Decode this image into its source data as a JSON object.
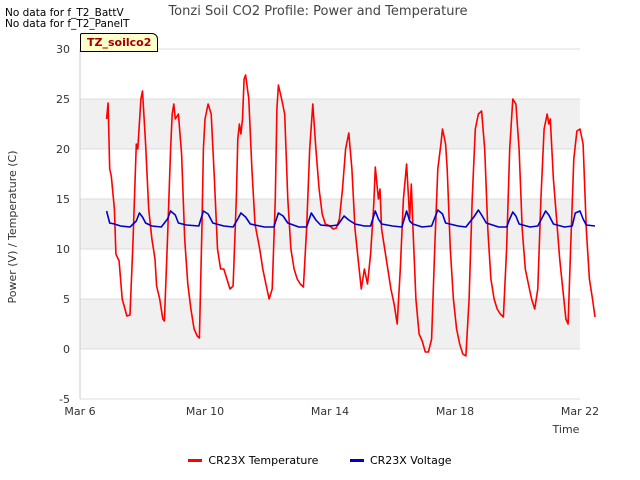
{
  "chart_data": {
    "type": "line",
    "title": "Tonzi Soil CO2 Profile: Power and Temperature",
    "xlabel": "Time",
    "ylabel": "Power (V) / Temperature (C)",
    "ylim": [
      -5,
      30
    ],
    "xlim_days": [
      6,
      22
    ],
    "x_ticks": [
      {
        "value": 6,
        "label": "Mar 6"
      },
      {
        "value": 10,
        "label": "Mar 10"
      },
      {
        "value": 14,
        "label": "Mar 14"
      },
      {
        "value": 18,
        "label": "Mar 18"
      },
      {
        "value": 22,
        "label": "Mar 22"
      }
    ],
    "y_ticks": [
      -5,
      0,
      5,
      10,
      15,
      20,
      25,
      30
    ],
    "grid": "horizontal bands",
    "legend_position": "bottom",
    "series": [
      {
        "name": "CR23X Temperature",
        "color": "#ff0000",
        "points": [
          [
            6.85,
            23.0
          ],
          [
            6.9,
            24.6
          ],
          [
            6.95,
            18.0
          ],
          [
            7.0,
            17.3
          ],
          [
            7.1,
            14.0
          ],
          [
            7.15,
            9.5
          ],
          [
            7.25,
            8.8
          ],
          [
            7.35,
            5.0
          ],
          [
            7.5,
            3.3
          ],
          [
            7.6,
            3.4
          ],
          [
            7.7,
            11.0
          ],
          [
            7.8,
            20.5
          ],
          [
            7.85,
            20.0
          ],
          [
            7.95,
            25.0
          ],
          [
            8.0,
            25.8
          ],
          [
            8.1,
            20.5
          ],
          [
            8.2,
            14.0
          ],
          [
            8.3,
            11.0
          ],
          [
            8.4,
            9.0
          ],
          [
            8.45,
            6.3
          ],
          [
            8.55,
            5.0
          ],
          [
            8.65,
            3.0
          ],
          [
            8.7,
            2.8
          ],
          [
            8.8,
            11.0
          ],
          [
            8.9,
            20.0
          ],
          [
            8.95,
            23.5
          ],
          [
            9.0,
            24.5
          ],
          [
            9.05,
            23.0
          ],
          [
            9.15,
            23.5
          ],
          [
            9.25,
            19.5
          ],
          [
            9.35,
            11.0
          ],
          [
            9.45,
            6.5
          ],
          [
            9.55,
            4.0
          ],
          [
            9.65,
            2.0
          ],
          [
            9.75,
            1.3
          ],
          [
            9.82,
            1.1
          ],
          [
            9.9,
            12.0
          ],
          [
            9.95,
            20.0
          ],
          [
            10.0,
            23.0
          ],
          [
            10.1,
            24.5
          ],
          [
            10.2,
            23.5
          ],
          [
            10.3,
            17.0
          ],
          [
            10.4,
            10.0
          ],
          [
            10.5,
            8.0
          ],
          [
            10.6,
            8.0
          ],
          [
            10.7,
            7.0
          ],
          [
            10.8,
            6.0
          ],
          [
            10.9,
            6.3
          ],
          [
            11.0,
            15.0
          ],
          [
            11.05,
            21.0
          ],
          [
            11.1,
            22.5
          ],
          [
            11.15,
            21.5
          ],
          [
            11.2,
            23.0
          ],
          [
            11.25,
            27.0
          ],
          [
            11.3,
            27.4
          ],
          [
            11.4,
            25.0
          ],
          [
            11.5,
            18.0
          ],
          [
            11.6,
            12.5
          ],
          [
            11.75,
            10.0
          ],
          [
            11.85,
            8.0
          ],
          [
            11.95,
            6.5
          ],
          [
            12.05,
            5.0
          ],
          [
            12.15,
            6.0
          ],
          [
            12.25,
            15.0
          ],
          [
            12.3,
            24.0
          ],
          [
            12.35,
            26.4
          ],
          [
            12.45,
            25.0
          ],
          [
            12.55,
            23.5
          ],
          [
            12.65,
            15.0
          ],
          [
            12.75,
            10.0
          ],
          [
            12.85,
            8.0
          ],
          [
            12.95,
            7.0
          ],
          [
            13.05,
            6.5
          ],
          [
            13.15,
            6.2
          ],
          [
            13.25,
            12.0
          ],
          [
            13.35,
            20.0
          ],
          [
            13.45,
            24.5
          ],
          [
            13.55,
            20.0
          ],
          [
            13.65,
            16.0
          ],
          [
            13.75,
            13.5
          ],
          [
            13.85,
            12.5
          ],
          [
            14.0,
            12.3
          ],
          [
            14.1,
            12.0
          ],
          [
            14.2,
            12.1
          ],
          [
            14.3,
            13.0
          ],
          [
            14.4,
            16.0
          ],
          [
            14.5,
            20.0
          ],
          [
            14.6,
            21.6
          ],
          [
            14.7,
            18.0
          ],
          [
            14.8,
            12.0
          ],
          [
            14.9,
            9.0
          ],
          [
            15.0,
            6.0
          ],
          [
            15.1,
            8.0
          ],
          [
            15.2,
            6.5
          ],
          [
            15.3,
            9.5
          ],
          [
            15.4,
            14.5
          ],
          [
            15.45,
            18.2
          ],
          [
            15.55,
            15.0
          ],
          [
            15.6,
            16.0
          ],
          [
            15.65,
            12.0
          ],
          [
            15.75,
            10.0
          ],
          [
            15.85,
            8.0
          ],
          [
            15.95,
            6.0
          ],
          [
            16.05,
            4.5
          ],
          [
            16.15,
            2.5
          ],
          [
            16.25,
            8.0
          ],
          [
            16.35,
            15.0
          ],
          [
            16.45,
            18.5
          ],
          [
            16.55,
            13.0
          ],
          [
            16.6,
            16.5
          ],
          [
            16.65,
            12.5
          ],
          [
            16.75,
            5.0
          ],
          [
            16.85,
            1.5
          ],
          [
            16.95,
            0.8
          ],
          [
            17.05,
            -0.3
          ],
          [
            17.15,
            -0.3
          ],
          [
            17.25,
            1.0
          ],
          [
            17.35,
            10.0
          ],
          [
            17.45,
            18.0
          ],
          [
            17.55,
            20.5
          ],
          [
            17.6,
            22.0
          ],
          [
            17.7,
            20.5
          ],
          [
            17.75,
            18.0
          ],
          [
            17.85,
            10.0
          ],
          [
            17.95,
            5.0
          ],
          [
            18.05,
            2.0
          ],
          [
            18.15,
            0.5
          ],
          [
            18.25,
            -0.5
          ],
          [
            18.35,
            -0.7
          ],
          [
            18.45,
            5.0
          ],
          [
            18.55,
            15.0
          ],
          [
            18.65,
            22.0
          ],
          [
            18.75,
            23.5
          ],
          [
            18.85,
            23.8
          ],
          [
            18.95,
            20.0
          ],
          [
            19.05,
            12.0
          ],
          [
            19.15,
            7.0
          ],
          [
            19.25,
            5.0
          ],
          [
            19.35,
            4.0
          ],
          [
            19.45,
            3.5
          ],
          [
            19.55,
            3.2
          ],
          [
            19.65,
            10.0
          ],
          [
            19.75,
            20.0
          ],
          [
            19.85,
            25.0
          ],
          [
            19.95,
            24.5
          ],
          [
            20.05,
            20.0
          ],
          [
            20.15,
            12.0
          ],
          [
            20.25,
            8.0
          ],
          [
            20.35,
            6.5
          ],
          [
            20.45,
            5.0
          ],
          [
            20.55,
            4.0
          ],
          [
            20.65,
            6.0
          ],
          [
            20.75,
            15.0
          ],
          [
            20.85,
            22.0
          ],
          [
            20.95,
            23.5
          ],
          [
            21.0,
            22.5
          ],
          [
            21.05,
            23.0
          ],
          [
            21.15,
            17.0
          ],
          [
            21.25,
            13.0
          ],
          [
            21.35,
            9.0
          ],
          [
            21.45,
            6.0
          ],
          [
            21.55,
            3.0
          ],
          [
            21.62,
            2.5
          ],
          [
            21.7,
            10.0
          ],
          [
            21.8,
            19.0
          ],
          [
            21.9,
            21.8
          ],
          [
            22.0,
            22.0
          ],
          [
            22.1,
            20.5
          ],
          [
            22.2,
            12.0
          ],
          [
            22.3,
            7.0
          ],
          [
            22.4,
            5.0
          ],
          [
            22.48,
            3.2
          ]
        ]
      },
      {
        "name": "CR23X Voltage",
        "color": "#0000cc",
        "points": [
          [
            6.85,
            13.8
          ],
          [
            6.95,
            12.6
          ],
          [
            7.1,
            12.5
          ],
          [
            7.3,
            12.3
          ],
          [
            7.6,
            12.2
          ],
          [
            7.8,
            12.8
          ],
          [
            7.9,
            13.6
          ],
          [
            8.0,
            13.2
          ],
          [
            8.1,
            12.6
          ],
          [
            8.3,
            12.3
          ],
          [
            8.6,
            12.2
          ],
          [
            8.8,
            13.0
          ],
          [
            8.9,
            13.8
          ],
          [
            9.05,
            13.4
          ],
          [
            9.15,
            12.6
          ],
          [
            9.4,
            12.4
          ],
          [
            9.8,
            12.3
          ],
          [
            9.95,
            13.8
          ],
          [
            10.1,
            13.5
          ],
          [
            10.25,
            12.6
          ],
          [
            10.6,
            12.3
          ],
          [
            10.9,
            12.2
          ],
          [
            11.05,
            13.0
          ],
          [
            11.15,
            13.6
          ],
          [
            11.3,
            13.2
          ],
          [
            11.45,
            12.5
          ],
          [
            11.9,
            12.2
          ],
          [
            12.2,
            12.2
          ],
          [
            12.35,
            13.6
          ],
          [
            12.5,
            13.3
          ],
          [
            12.65,
            12.6
          ],
          [
            13.0,
            12.2
          ],
          [
            13.25,
            12.2
          ],
          [
            13.4,
            13.6
          ],
          [
            13.55,
            12.9
          ],
          [
            13.7,
            12.4
          ],
          [
            14.0,
            12.3
          ],
          [
            14.25,
            12.4
          ],
          [
            14.45,
            13.3
          ],
          [
            14.6,
            12.9
          ],
          [
            14.8,
            12.5
          ],
          [
            15.1,
            12.3
          ],
          [
            15.3,
            12.3
          ],
          [
            15.45,
            13.8
          ],
          [
            15.55,
            13.0
          ],
          [
            15.65,
            12.5
          ],
          [
            16.0,
            12.3
          ],
          [
            16.3,
            12.2
          ],
          [
            16.45,
            13.8
          ],
          [
            16.55,
            12.8
          ],
          [
            16.65,
            12.5
          ],
          [
            16.95,
            12.2
          ],
          [
            17.25,
            12.3
          ],
          [
            17.45,
            13.9
          ],
          [
            17.6,
            13.5
          ],
          [
            17.7,
            12.6
          ],
          [
            18.1,
            12.3
          ],
          [
            18.35,
            12.2
          ],
          [
            18.6,
            13.2
          ],
          [
            18.75,
            13.9
          ],
          [
            18.85,
            13.4
          ],
          [
            19.0,
            12.6
          ],
          [
            19.4,
            12.2
          ],
          [
            19.65,
            12.2
          ],
          [
            19.75,
            13.0
          ],
          [
            19.85,
            13.7
          ],
          [
            19.95,
            13.3
          ],
          [
            20.05,
            12.5
          ],
          [
            20.4,
            12.2
          ],
          [
            20.65,
            12.3
          ],
          [
            20.8,
            13.2
          ],
          [
            20.9,
            13.8
          ],
          [
            21.0,
            13.4
          ],
          [
            21.15,
            12.5
          ],
          [
            21.5,
            12.2
          ],
          [
            21.75,
            12.3
          ],
          [
            21.85,
            13.6
          ],
          [
            22.0,
            13.8
          ],
          [
            22.1,
            13.0
          ],
          [
            22.2,
            12.4
          ],
          [
            22.48,
            12.3
          ]
        ]
      }
    ]
  },
  "annotations": {
    "nodata1": "No data for f_T2_BattV",
    "nodata2": "No data for f_T2_PanelT",
    "badge": "TZ_soilco2"
  }
}
